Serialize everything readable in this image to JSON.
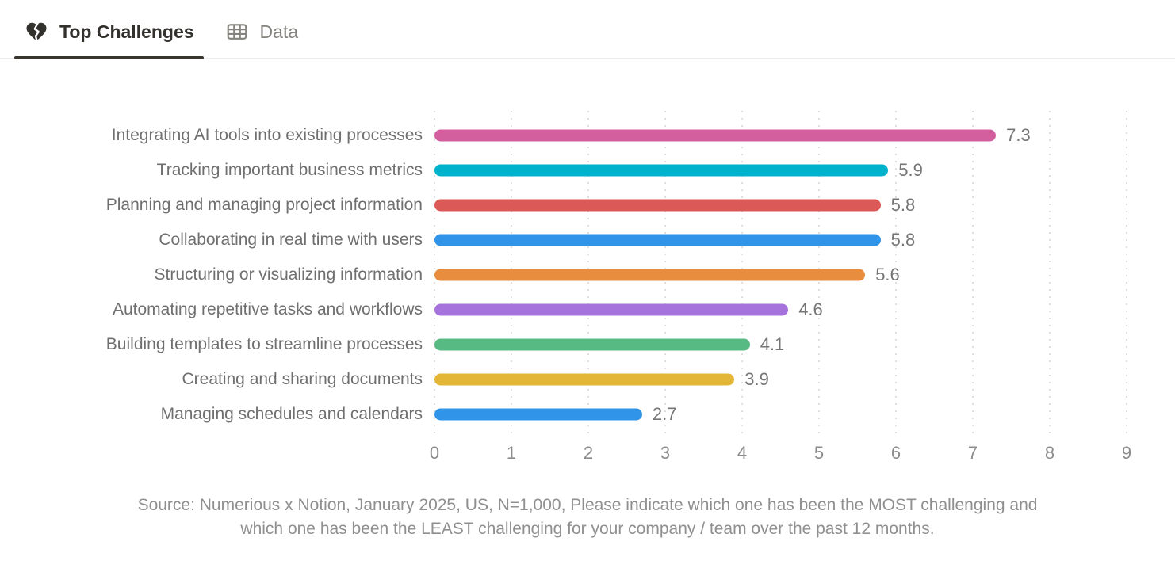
{
  "tabs": [
    {
      "label": "Top Challenges",
      "icon": "broken-heart-icon",
      "active": true
    },
    {
      "label": "Data",
      "icon": "table-icon",
      "active": false
    }
  ],
  "chart_data": {
    "type": "bar",
    "orientation": "horizontal",
    "title": "",
    "xlabel": "",
    "ylabel": "",
    "categories": [
      "Integrating AI tools into existing processes",
      "Tracking important business metrics",
      "Planning and managing project information",
      "Collaborating in real time with users",
      "Structuring or visualizing information",
      "Automating repetitive tasks and workflows",
      "Building templates to streamline processes",
      "Creating and sharing documents",
      "Managing schedules and calendars"
    ],
    "values": [
      7.3,
      5.9,
      5.8,
      5.8,
      5.6,
      4.6,
      4.1,
      3.9,
      2.7
    ],
    "value_labels": [
      "7.3",
      "5.9",
      "5.8",
      "5.8",
      "5.6",
      "4.6",
      "4.1",
      "3.9",
      "2.7"
    ],
    "bar_colors": [
      "#d45f9e",
      "#00b2cc",
      "#db5a57",
      "#3095e8",
      "#e88d3e",
      "#a673dd",
      "#58ba83",
      "#e4b637",
      "#3095e8"
    ],
    "xlim": [
      0,
      9
    ],
    "x_ticks": [
      "0",
      "1",
      "2",
      "3",
      "4",
      "5",
      "6",
      "7",
      "8",
      "9"
    ],
    "grid": "dotted-vertical",
    "legend": "none"
  },
  "source": {
    "line1": "Source: Numerious x Notion, January 2025, US, N=1,000, Please indicate which one has been the MOST challenging and",
    "line2": "which one has been the LEAST challenging for your company /  team over the past 12 months."
  },
  "colors": {
    "active_tab": "#33312e",
    "inactive_tab": "#84827d",
    "active_underline": "#39362f",
    "gridline": "#dedede",
    "category_label": "#6f6f6f",
    "value_label": "#757575",
    "tick_label": "#8c8c8c",
    "source_text": "#8f8f8f"
  }
}
